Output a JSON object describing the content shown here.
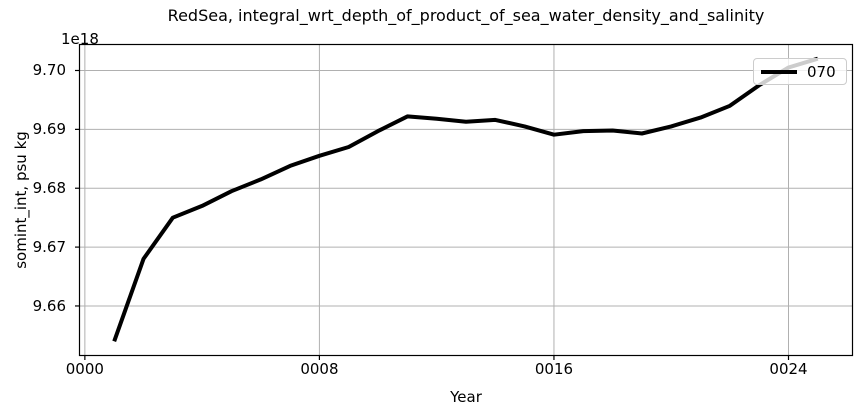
{
  "figure": {
    "title": "RedSea, integral_wrt_depth_of_product_of_sea_water_density_and_salinity",
    "offset_text": "1e18",
    "xlabel": "Year",
    "ylabel": "somint_int, psu kg",
    "legend": {
      "label": "070"
    },
    "colors": {
      "line": "#000000",
      "grid": "#b0b0b0",
      "spine": "#000000",
      "text": "#000000",
      "legend_border": "#cccccc",
      "background": "#ffffff"
    }
  },
  "chart_data": {
    "type": "line",
    "title": "RedSea, integral_wrt_depth_of_product_of_sea_water_density_and_salinity",
    "xlabel": "Year",
    "ylabel": "somint_int, psu kg",
    "unit_multiplier": "1e18",
    "legend_position": "upper right",
    "grid": true,
    "series": [
      {
        "name": "070",
        "x": [
          1,
          2,
          3,
          4,
          5,
          6,
          7,
          8,
          9,
          10,
          11,
          12,
          13,
          14,
          15,
          16,
          17,
          18,
          19,
          20,
          21,
          22,
          23,
          24,
          25
        ],
        "y": [
          9.654,
          9.668,
          9.675,
          9.677,
          9.6795,
          9.6815,
          9.6838,
          9.6855,
          9.687,
          9.6897,
          9.6922,
          9.6918,
          9.6913,
          9.6916,
          9.6905,
          9.6891,
          9.6897,
          9.6898,
          9.6893,
          9.6905,
          9.692,
          9.694,
          9.6975,
          9.7005,
          9.702
        ]
      }
    ],
    "xlim": [
      -0.2,
      26.2
    ],
    "ylim": [
      9.6515,
      9.7045
    ],
    "xticks": {
      "values": [
        0,
        8,
        16,
        24
      ],
      "labels": [
        "0000",
        "0008",
        "0016",
        "0024"
      ]
    },
    "yticks": {
      "values": [
        9.66,
        9.67,
        9.68,
        9.69,
        9.7
      ],
      "labels": [
        "9.66",
        "9.67",
        "9.68",
        "9.69",
        "9.70"
      ]
    },
    "line_color": "#000000",
    "line_width": 4
  }
}
